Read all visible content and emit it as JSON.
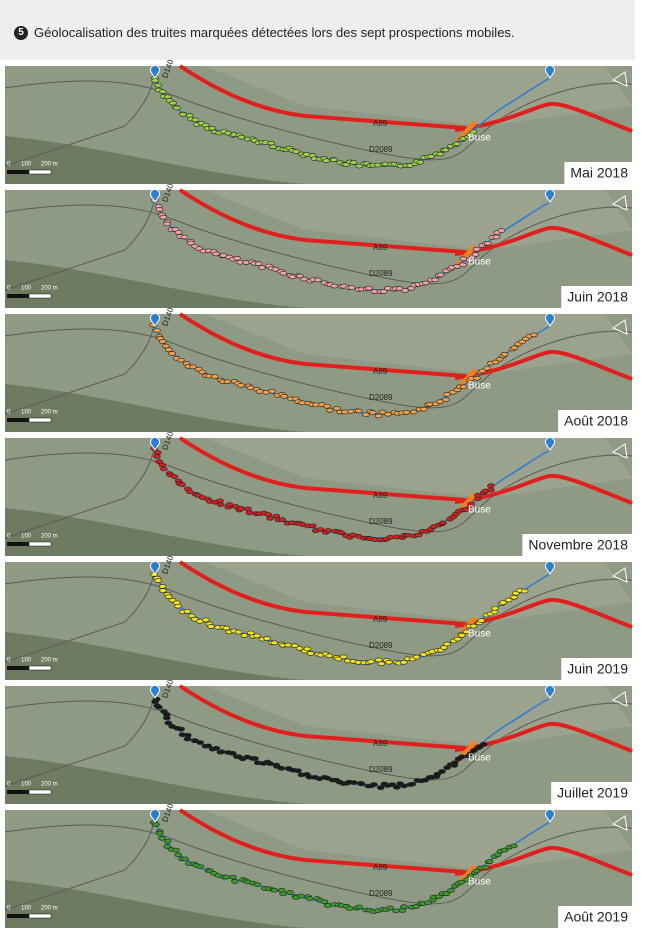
{
  "figure": {
    "number": "5",
    "caption": "Géolocalisation des truites marquées détectées lors des sept prospections mobiles."
  },
  "map_labels": {
    "road_north": "D140",
    "highway": "A89",
    "road_valley": "D2089",
    "culvert": "Buse"
  },
  "scale": {
    "zero": "0",
    "mid": "100",
    "end": "200 m"
  },
  "panels": [
    {
      "label": "Mai 2018",
      "dot_color": "#9bd24a"
    },
    {
      "label": "Juin 2018",
      "dot_color": "#f2a0a6"
    },
    {
      "label": "Août 2018",
      "dot_color": "#f0a04a"
    },
    {
      "label": "Novembre 2018",
      "dot_color": "#d42020"
    },
    {
      "label": "Juin 2019",
      "dot_color": "#f2e21a"
    },
    {
      "label": "Juillet 2019",
      "dot_color": "#1a1a1a"
    },
    {
      "label": "Août 2019",
      "dot_color": "#3a9a2a"
    }
  ]
}
